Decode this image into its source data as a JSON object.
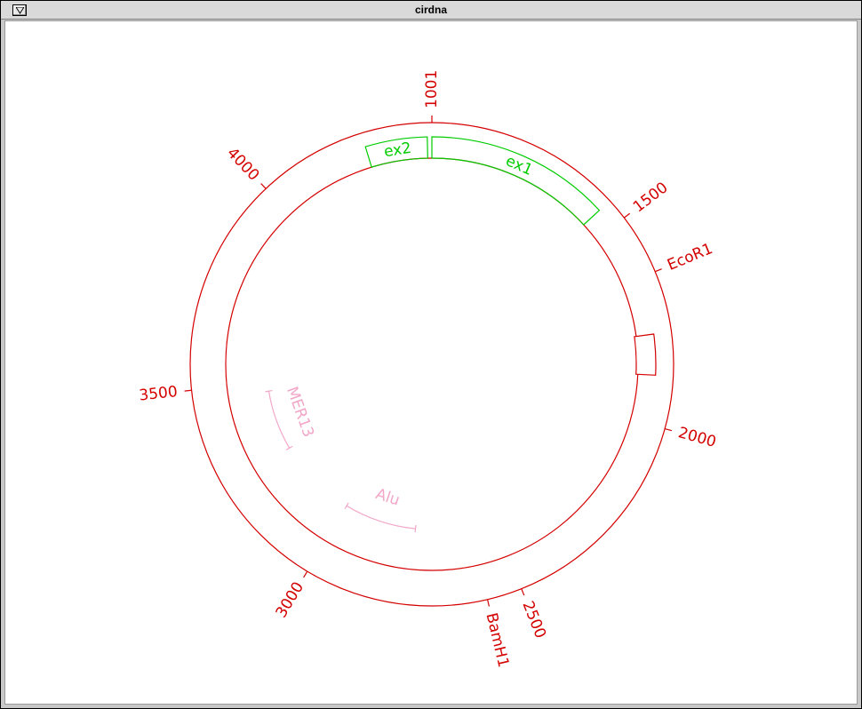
{
  "window": {
    "title": "cirdna",
    "menu_icon": "window-menu-icon"
  },
  "plasmid": {
    "start": 1001,
    "end": 4411,
    "colors": {
      "map": "#d40000",
      "exon": "#00cc00",
      "repeat": "#f2a6c8",
      "box": "#d40000"
    },
    "ticks": [
      {
        "position": 1001,
        "label": "1001"
      },
      {
        "position": 1500,
        "label": "1500"
      },
      {
        "position": 2000,
        "label": "2000"
      },
      {
        "position": 2500,
        "label": "2500"
      },
      {
        "position": 3000,
        "label": "3000"
      },
      {
        "position": 3500,
        "label": "3500"
      },
      {
        "position": 4000,
        "label": "4000"
      }
    ],
    "sites": [
      {
        "position": 1640,
        "label": "EcoR1"
      },
      {
        "position": 2580,
        "label": "BamH1"
      }
    ],
    "exons": [
      {
        "label": "ex1",
        "start": 1001,
        "end": 1450
      },
      {
        "label": "ex2",
        "start": 4250,
        "end": 4400
      }
    ],
    "repeats": [
      {
        "label": "MER13",
        "start": 3270,
        "end": 3470
      },
      {
        "label": "Alu",
        "start": 2760,
        "end": 3000
      }
    ],
    "boxes": [
      {
        "start": 1780,
        "end": 1880
      }
    ]
  }
}
